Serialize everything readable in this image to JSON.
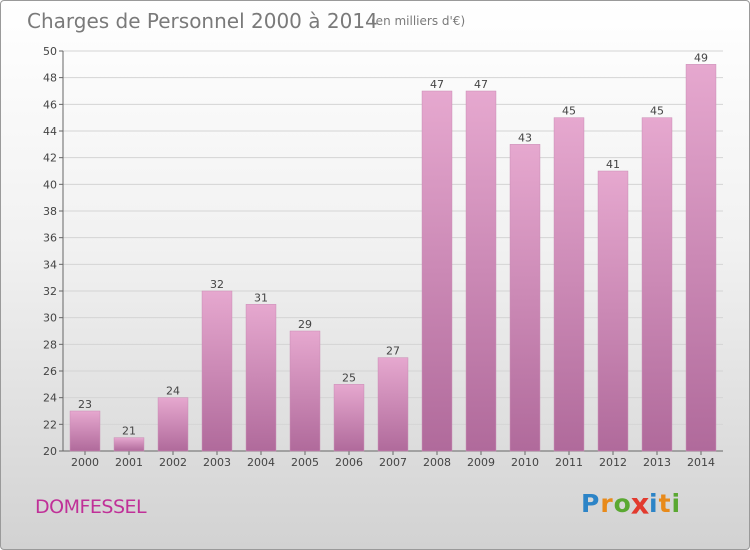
{
  "header": {
    "title": "Charges de Personnel 2000 à 2014",
    "unit_note": "(en milliers d'€)"
  },
  "footer": {
    "commune": "DOMFESSEL",
    "brand": [
      "P",
      "r",
      "o",
      "x",
      "i",
      "t",
      "i"
    ],
    "brand_colors": [
      "#2c84c7",
      "#e88a1a",
      "#5aa832",
      "#e23a2e",
      "#2c84c7",
      "#e88a1a",
      "#5aa832"
    ]
  },
  "chart_data": {
    "type": "bar",
    "title": "Charges de Personnel 2000 à 2014",
    "subtitle": "(en milliers d'€)",
    "categories": [
      "2000",
      "2001",
      "2002",
      "2003",
      "2004",
      "2005",
      "2006",
      "2007",
      "2008",
      "2009",
      "2010",
      "2011",
      "2012",
      "2013",
      "2014"
    ],
    "values": [
      23,
      21,
      24,
      32,
      31,
      29,
      25,
      27,
      47,
      47,
      43,
      45,
      41,
      45,
      49
    ],
    "ylim": [
      20,
      50
    ],
    "yticks": [
      20,
      22,
      24,
      26,
      28,
      30,
      32,
      34,
      36,
      38,
      40,
      42,
      44,
      46,
      48,
      50
    ],
    "grid": true,
    "bar_color_top": "#e6a8cf",
    "bar_color_bottom": "#b06a9b"
  }
}
